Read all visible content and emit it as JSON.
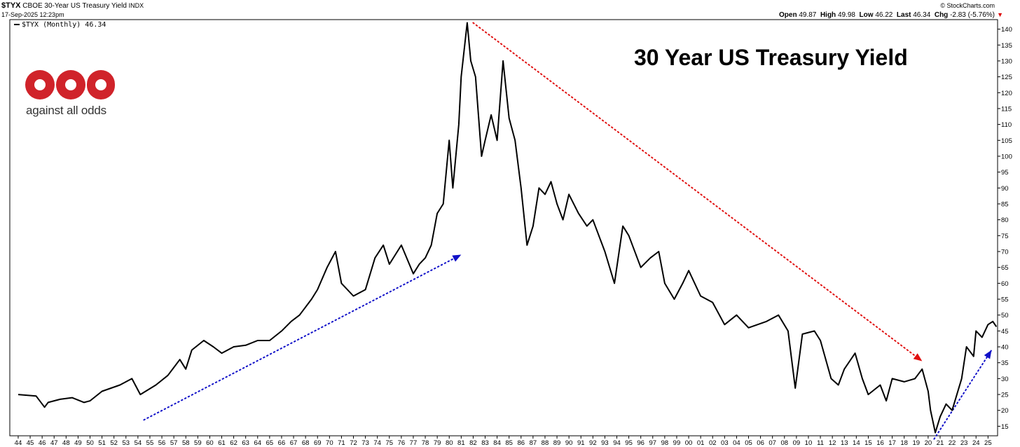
{
  "header": {
    "symbol": "$TYX",
    "name": "CBOE 30-Year US Treasury Yield",
    "exchange": "INDX",
    "datetime": "17-Sep-2025 12:23pm",
    "source": "© StockCharts.com",
    "ohlc": {
      "open_label": "Open",
      "open": "49.87",
      "high_label": "High",
      "high": "49.98",
      "low_label": "Low",
      "low": "46.22",
      "last_label": "Last",
      "last": "46.34",
      "chg_label": "Chg",
      "chg": "-2.83 (-5.76%)"
    },
    "down_arrow": "▼"
  },
  "legend": {
    "label": "$TYX (Monthly) 46.34"
  },
  "annotation_title": "30 Year US Treasury Yield",
  "logo": {
    "text": "against all odds",
    "color": "#d0232a"
  },
  "colors": {
    "line": "#000000",
    "red_trend": "#e01010",
    "blue_trend": "#1010c8"
  },
  "chart_data": {
    "type": "line",
    "title": "30 Year US Treasury Yield",
    "series": [
      {
        "name": "$TYX (Monthly)",
        "x": [
          1944.0,
          1945.5,
          1946.2,
          1946.5,
          1947.5,
          1948.5,
          1949.5,
          1950.0,
          1951.0,
          1952.5,
          1953.5,
          1954.2,
          1955.5,
          1956.5,
          1957.5,
          1958.0,
          1958.5,
          1959.5,
          1960.3,
          1961.0,
          1962.0,
          1963.0,
          1964.0,
          1965.0,
          1966.0,
          1966.8,
          1967.5,
          1968.5,
          1969.0,
          1969.8,
          1970.5,
          1971.0,
          1972.0,
          1973.0,
          1973.8,
          1974.5,
          1975.0,
          1976.0,
          1977.0,
          1977.5,
          1978.0,
          1978.5,
          1979.0,
          1979.5,
          1980.0,
          1980.3,
          1980.8,
          1981.0,
          1981.5,
          1981.8,
          1982.2,
          1982.7,
          1983.0,
          1983.5,
          1984.0,
          1984.5,
          1985.0,
          1985.5,
          1986.0,
          1986.5,
          1987.0,
          1987.5,
          1988.0,
          1988.5,
          1989.0,
          1989.5,
          1990.0,
          1990.8,
          1991.5,
          1992.0,
          1993.0,
          1993.8,
          1994.5,
          1995.0,
          1996.0,
          1996.8,
          1997.5,
          1998.0,
          1998.8,
          1999.5,
          2000.0,
          2001.0,
          2002.0,
          2003.0,
          2004.0,
          2005.0,
          2006.5,
          2007.5,
          2008.3,
          2008.9,
          2009.5,
          2010.5,
          2011.0,
          2011.9,
          2012.5,
          2013.0,
          2013.9,
          2014.5,
          2015.0,
          2016.0,
          2016.5,
          2017.0,
          2018.0,
          2018.9,
          2019.5,
          2020.0,
          2020.2,
          2020.6,
          2021.0,
          2021.5,
          2022.0,
          2022.8,
          2023.2,
          2023.8,
          2024.0,
          2024.5,
          2025.0,
          2025.4,
          2025.7
        ],
        "y": [
          25,
          24.5,
          21,
          22.5,
          23.5,
          24,
          22.5,
          23,
          26,
          28,
          30,
          25,
          28,
          31,
          36,
          33,
          39,
          42,
          40,
          38,
          40,
          40.5,
          42,
          42,
          45,
          48,
          50,
          55,
          58,
          65,
          70,
          60,
          56,
          58,
          68,
          72,
          66,
          72,
          63,
          66,
          68,
          72,
          82,
          85,
          105,
          90,
          110,
          125,
          142,
          130,
          125,
          100,
          105,
          113,
          105,
          130,
          112,
          105,
          90,
          72,
          78,
          90,
          88,
          92,
          85,
          80,
          88,
          82,
          78,
          80,
          70,
          60,
          78,
          75,
          65,
          68,
          70,
          60,
          55,
          60,
          64,
          56,
          54,
          47,
          50,
          46,
          48,
          50,
          45,
          27,
          44,
          45,
          42,
          30,
          28,
          33,
          38,
          30,
          25,
          28,
          23,
          30,
          29,
          30,
          33,
          26,
          20,
          13,
          18,
          22,
          20,
          30,
          40,
          37,
          45,
          43,
          47,
          48,
          46.34
        ],
        "xlim": [
          1943.3,
          2025.8
        ],
        "ylim": [
          12,
          143
        ]
      }
    ],
    "trend_lines": [
      {
        "color": "red",
        "from": [
          1982.0,
          142
        ],
        "to": [
          2019.5,
          35.5
        ]
      },
      {
        "color": "blue",
        "from": [
          1954.5,
          17
        ],
        "to": [
          1981.0,
          69
        ]
      },
      {
        "color": "blue",
        "from": [
          2020.5,
          11
        ],
        "to": [
          2025.3,
          39
        ]
      }
    ],
    "x_ticks": [
      "44",
      "45",
      "46",
      "47",
      "48",
      "49",
      "50",
      "51",
      "52",
      "53",
      "54",
      "55",
      "56",
      "57",
      "58",
      "59",
      "60",
      "61",
      "62",
      "63",
      "64",
      "65",
      "66",
      "67",
      "68",
      "69",
      "70",
      "71",
      "72",
      "73",
      "74",
      "75",
      "76",
      "77",
      "78",
      "79",
      "80",
      "81",
      "82",
      "83",
      "84",
      "85",
      "86",
      "87",
      "88",
      "89",
      "90",
      "91",
      "92",
      "93",
      "94",
      "95",
      "96",
      "97",
      "98",
      "99",
      "00",
      "01",
      "02",
      "03",
      "04",
      "05",
      "06",
      "07",
      "08",
      "09",
      "10",
      "11",
      "12",
      "13",
      "14",
      "15",
      "16",
      "17",
      "18",
      "19",
      "20",
      "21",
      "22",
      "23",
      "24",
      "25"
    ],
    "y_ticks": [
      15,
      20,
      25,
      30,
      35,
      40,
      45,
      50,
      55,
      60,
      65,
      70,
      75,
      80,
      85,
      90,
      95,
      100,
      105,
      110,
      115,
      120,
      125,
      130,
      135,
      140
    ],
    "y_scale": "linear",
    "grid": false,
    "legend_position": "top-left"
  }
}
